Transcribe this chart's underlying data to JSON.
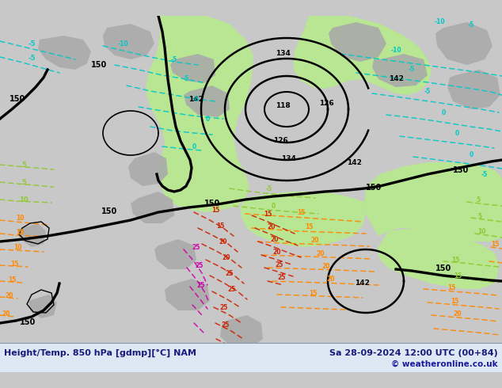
{
  "title_left": "Height/Temp. 850 hPa [gdmp][°C] NAM",
  "title_right": "Sa 28-09-2024 12:00 UTC (00+84)",
  "copyright": "© weatheronline.co.uk",
  "bg_color": "#c8c8c8",
  "map_bg": "#d8d8d8",
  "green_fill": "#b8e890",
  "gray_fill": "#a8a8a8",
  "bottom_bar_color": "#dce8f4",
  "title_color": "#1a1a7a",
  "figsize": [
    6.34,
    4.9
  ],
  "dpi": 100
}
